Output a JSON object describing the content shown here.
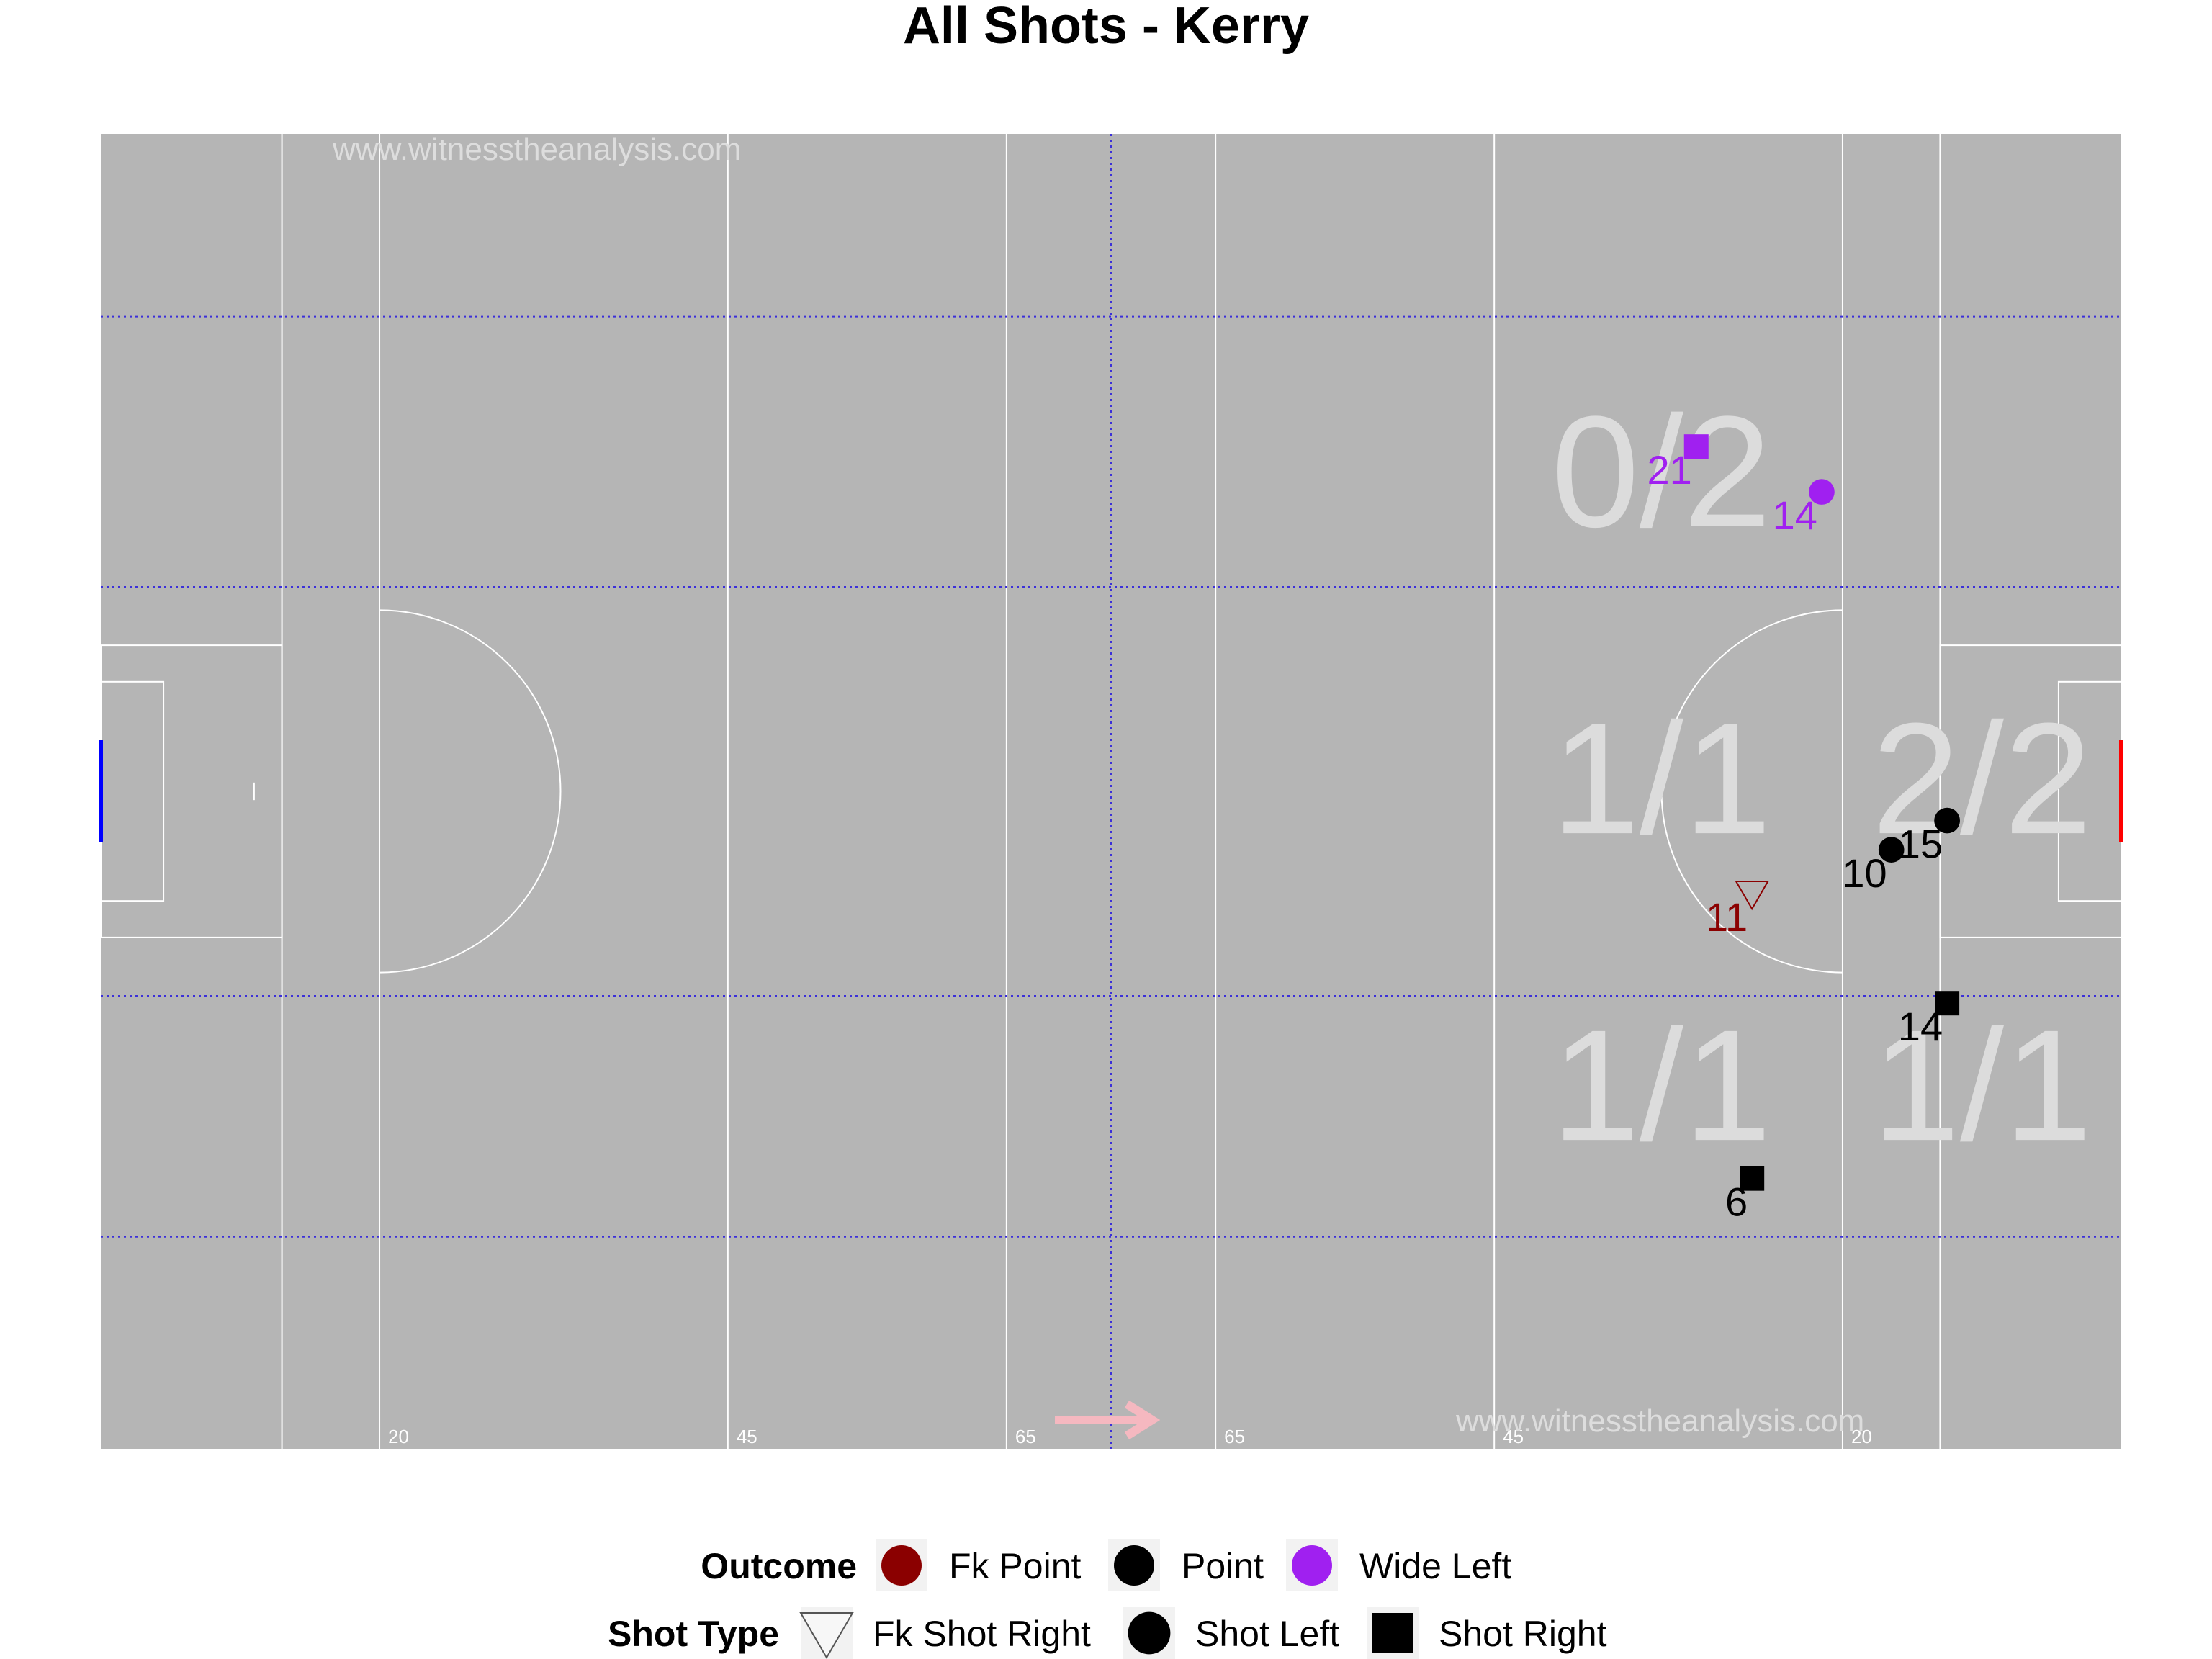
{
  "title": "All Shots - Kerry",
  "watermarks": [
    "www.witnesstheanalysis.com",
    "www.witnesstheanalysis.com"
  ],
  "colors": {
    "pitch": "#b5b5b5",
    "lines": "#ffffff",
    "grid": "#3b2fd9",
    "left_goal": "#0000ff",
    "right_goal": "#ff0000",
    "arrow": "#f5b8c0",
    "zone_text": "#dcdcdc",
    "fk_point": "#8b0000",
    "point": "#000000",
    "wide_left": "#a020f0"
  },
  "pitch": {
    "direction_arrow": "right",
    "line_labels": [
      "20",
      "45",
      "65",
      "65",
      "45",
      "20"
    ]
  },
  "chart_data": {
    "type": "scatter",
    "title": "All Shots - Kerry",
    "xlabel": "",
    "ylabel": "",
    "xlim": [
      0,
      145
    ],
    "ylim": [
      0,
      90
    ],
    "grid": "dotted zone lines",
    "legend_position": "bottom",
    "zones": [
      {
        "label": "0/2",
        "x": 112,
        "y": 66
      },
      {
        "label": "1/1",
        "x": 112,
        "y": 45
      },
      {
        "label": "2/2",
        "x": 135,
        "y": 45
      },
      {
        "label": "1/1",
        "x": 112,
        "y": 24
      },
      {
        "label": "1/1",
        "x": 135,
        "y": 24
      }
    ],
    "points": [
      {
        "label": "21",
        "x": 114.5,
        "y": 68.6,
        "outcome": "Wide Left",
        "shot_type": "Shot Right"
      },
      {
        "label": "14",
        "x": 123.5,
        "y": 65.5,
        "outcome": "Wide Left",
        "shot_type": "Shot Left"
      },
      {
        "label": "15",
        "x": 132.5,
        "y": 43.0,
        "outcome": "Point",
        "shot_type": "Shot Left"
      },
      {
        "label": "10",
        "x": 128.5,
        "y": 41.0,
        "outcome": "Point",
        "shot_type": "Shot Left"
      },
      {
        "label": "11",
        "x": 118.5,
        "y": 38.0,
        "outcome": "Fk Point",
        "shot_type": "Fk Shot Right"
      },
      {
        "label": "14",
        "x": 132.5,
        "y": 30.5,
        "outcome": "Point",
        "shot_type": "Shot Right"
      },
      {
        "label": "6",
        "x": 118.5,
        "y": 18.5,
        "outcome": "Point",
        "shot_type": "Shot Right"
      }
    ],
    "legend": {
      "outcome": {
        "title": "Outcome",
        "items": [
          {
            "label": "Fk Point",
            "color": "#8b0000"
          },
          {
            "label": "Point",
            "color": "#000000"
          },
          {
            "label": "Wide Left",
            "color": "#a020f0"
          }
        ]
      },
      "shot_type": {
        "title": "Shot Type",
        "items": [
          {
            "label": "Fk Shot Right",
            "shape": "triangle-down"
          },
          {
            "label": "Shot Left",
            "shape": "circle"
          },
          {
            "label": "Shot Right",
            "shape": "square"
          }
        ]
      }
    }
  }
}
